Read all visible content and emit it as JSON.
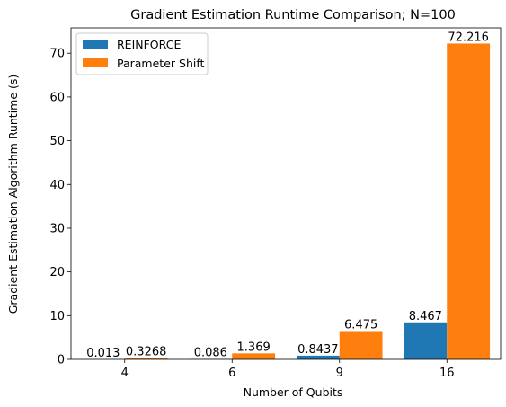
{
  "chart_data": {
    "type": "bar",
    "title": "Gradient Estimation Runtime Comparison; N=100",
    "xlabel": "Number of Qubits",
    "ylabel": "Gradient Estimation Algorithm Runtime (s)",
    "categories": [
      "4",
      "6",
      "9",
      "16"
    ],
    "series": [
      {
        "name": "REINFORCE",
        "color": "#1f77b4",
        "values": [
          0.013,
          0.086,
          0.8437,
          8.467
        ],
        "labels": [
          "0.013",
          "0.086",
          "0.8437",
          "8.467"
        ]
      },
      {
        "name": "Parameter Shift",
        "color": "#ff7f0e",
        "values": [
          0.3268,
          1.369,
          6.475,
          72.216
        ],
        "labels": [
          "0.3268",
          "1.369",
          "6.475",
          "72.216"
        ]
      }
    ],
    "ylim": [
      0,
      75.8
    ],
    "yticks": [
      0,
      10,
      20,
      30,
      40,
      50,
      60,
      70
    ],
    "grid": false,
    "legend_position": "top-left"
  }
}
